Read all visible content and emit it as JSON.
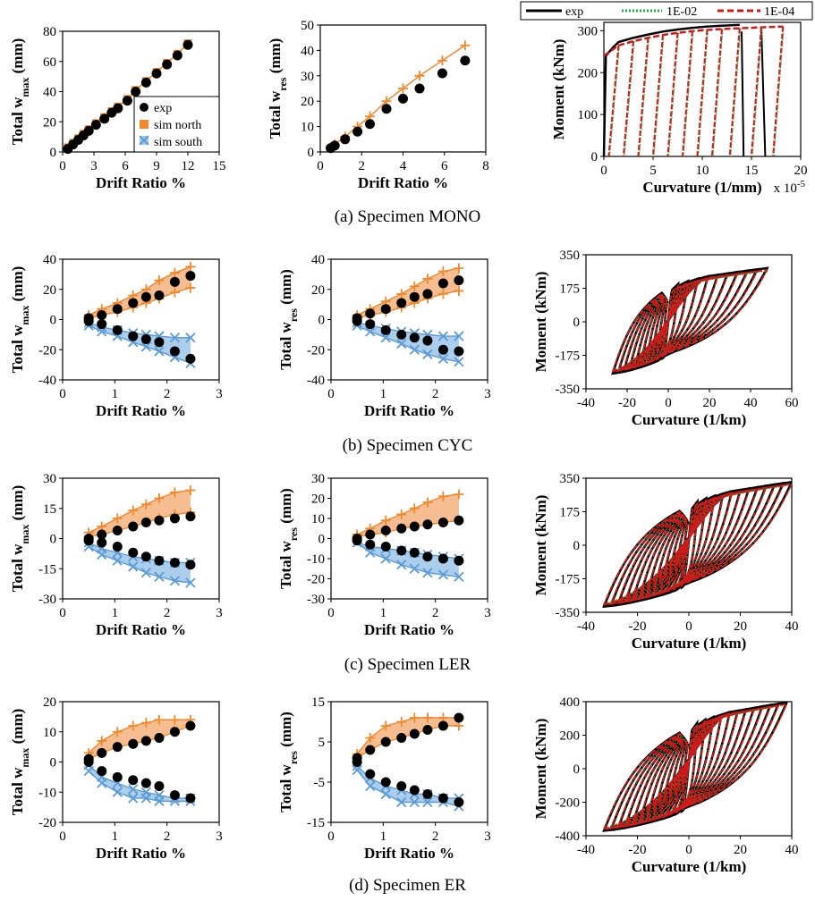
{
  "captions": {
    "a": "(a) Specimen MONO",
    "b": "(b) Specimen CYC",
    "c": "(c) Specimen LER",
    "d": "(d) Specimen ER"
  },
  "colors": {
    "exp": "#000000",
    "north": "#f0882e",
    "north_fill": "#f5b37c",
    "south": "#5b9bd5",
    "south_fill": "#9ec5ea",
    "sim_e2": "#22b14c",
    "sim_e4": "#d01a1a"
  },
  "top_legend": {
    "exp": "exp",
    "s1": "1E-02",
    "s2": "1E-04"
  },
  "chart_data": [
    {
      "id": "a1",
      "type": "scatter",
      "xlabel": "Drift Ratio %",
      "ylabel": "Total w",
      "ylabel_sub": "max",
      "ylabel_unit": " (mm)",
      "xlim": [
        0,
        15
      ],
      "ylim": [
        0,
        80
      ],
      "xticks": [
        "0",
        "3",
        "6",
        "9",
        "12",
        "15"
      ],
      "yticks": [
        "0",
        "20",
        "40",
        "60",
        "80"
      ],
      "legend": {
        "exp": "exp",
        "north": "sim north",
        "south": "sim south"
      },
      "series": [
        {
          "name": "exp",
          "kind": "exp",
          "x": [
            0.5,
            1.0,
            1.5,
            2.0,
            2.5,
            3.2,
            4.0,
            4.7,
            5.3,
            6.2,
            7.0,
            8.0,
            9.0,
            10.0,
            11.0,
            12.0
          ],
          "y": [
            2,
            5,
            8,
            11,
            14,
            18,
            22,
            26,
            29,
            34,
            40,
            46,
            52,
            58,
            64,
            71
          ]
        },
        {
          "name": "sim north",
          "kind": "north",
          "x": [
            0.5,
            1.0,
            1.5,
            2.0,
            2.5,
            3.2,
            4.0,
            4.7,
            5.3,
            6.2,
            7.0,
            8.0,
            9.0,
            10.0,
            11.0,
            12.0
          ],
          "y": [
            3,
            6,
            9,
            12,
            15,
            19,
            23,
            27,
            30,
            35,
            41,
            47,
            53,
            59,
            65,
            72
          ]
        }
      ]
    },
    {
      "id": "a2",
      "type": "scatter",
      "xlabel": "Drift Ratio %",
      "ylabel": "Total w",
      "ylabel_sub": "res",
      "ylabel_unit": " (mm)",
      "xlim": [
        0,
        8
      ],
      "ylim": [
        0,
        50
      ],
      "xticks": [
        "0",
        "2",
        "4",
        "6",
        "8"
      ],
      "yticks": [
        "0",
        "10",
        "20",
        "30",
        "40",
        "50"
      ],
      "series": [
        {
          "name": "exp",
          "kind": "exp",
          "x": [
            0.5,
            0.7,
            1.2,
            1.8,
            2.4,
            3.2,
            4.0,
            4.8,
            5.9,
            7.0
          ],
          "y": [
            1.5,
            2.5,
            5,
            8,
            11,
            17,
            21,
            25,
            31,
            36
          ]
        },
        {
          "name": "sim north",
          "kind": "north",
          "x": [
            0.5,
            0.7,
            1.2,
            1.8,
            2.4,
            3.2,
            4.0,
            4.8,
            5.9,
            7.0
          ],
          "y": [
            2,
            3,
            6,
            10,
            14,
            20,
            25,
            30,
            36,
            42
          ]
        }
      ]
    },
    {
      "id": "a3",
      "type": "line",
      "hyst": "mono",
      "xlabel": "Curvature (1/mm)",
      "ylabel": "Moment (kNm)",
      "xnote": "x 10",
      "xnote_sup": "-5",
      "xlim": [
        0,
        20
      ],
      "ylim": [
        0,
        320
      ],
      "xticks": [
        "0",
        "5",
        "10",
        "15",
        "20"
      ],
      "yticks": [
        "0",
        "100",
        "200",
        "300"
      ],
      "peaks": [
        1.5,
        3,
        4.5,
        6,
        7.5,
        9,
        10.5,
        12,
        13.8,
        16,
        18.2
      ],
      "envelope_y": [
        265,
        275,
        283,
        290,
        295,
        299,
        302,
        304,
        306,
        308,
        310
      ]
    },
    {
      "id": "b1",
      "type": "scatter",
      "xlabel": "Drift Ratio %",
      "ylabel": "Total w",
      "ylabel_sub": "max",
      "ylabel_unit": " (mm)",
      "xlim": [
        0,
        3
      ],
      "ylim": [
        -40,
        40
      ],
      "xticks": [
        "0",
        "1",
        "2",
        "3"
      ],
      "yticks": [
        "-40",
        "-20",
        "0",
        "20",
        "40"
      ],
      "x": [
        0.5,
        0.75,
        1.05,
        1.35,
        1.6,
        1.85,
        2.15,
        2.45
      ],
      "exp_pos": [
        1,
        3,
        7,
        11,
        15,
        16,
        25,
        29
      ],
      "exp_neg": [
        -1,
        -3,
        -7,
        -11,
        -13,
        -15,
        -21,
        -26
      ],
      "north_hi": [
        3,
        7,
        11,
        16,
        20,
        26,
        31,
        35
      ],
      "north_lo": [
        1,
        3,
        5,
        8,
        11,
        14,
        18,
        21
      ],
      "south_hi": [
        -2,
        -5,
        -7,
        -9,
        -10,
        -11,
        -12,
        -12
      ],
      "south_lo": [
        -4,
        -8,
        -11,
        -15,
        -18,
        -21,
        -25,
        -29
      ]
    },
    {
      "id": "b2",
      "type": "scatter",
      "xlabel": "Drift Ratio %",
      "ylabel": "Total w",
      "ylabel_sub": "res",
      "ylabel_unit": " (mm)",
      "xlim": [
        0,
        3
      ],
      "ylim": [
        -40,
        40
      ],
      "xticks": [
        "0",
        "1",
        "2",
        "3"
      ],
      "yticks": [
        "-40",
        "-20",
        "0",
        "20",
        "40"
      ],
      "x": [
        0.5,
        0.75,
        1.05,
        1.35,
        1.6,
        1.85,
        2.15,
        2.45
      ],
      "exp_pos": [
        1,
        4,
        7,
        11,
        15,
        17,
        24,
        26
      ],
      "exp_neg": [
        -1,
        -3,
        -7,
        -10,
        -12,
        -14,
        -20,
        -21
      ],
      "north_hi": [
        3,
        7,
        12,
        17,
        22,
        27,
        32,
        34
      ],
      "north_lo": [
        1,
        3,
        5,
        8,
        11,
        14,
        17,
        19
      ],
      "south_hi": [
        -2,
        -4,
        -6,
        -8,
        -9,
        -10,
        -11,
        -11
      ],
      "south_lo": [
        -4,
        -8,
        -12,
        -16,
        -20,
        -23,
        -26,
        -28
      ]
    },
    {
      "id": "b3",
      "type": "line",
      "hyst": "cyclic",
      "xlabel": "Curvature (1/km)",
      "ylabel": "Moment (kNm)",
      "xlim": [
        -40,
        60
      ],
      "ylim": [
        -350,
        350
      ],
      "xticks": [
        "-40",
        "-20",
        "0",
        "20",
        "40",
        "60"
      ],
      "yticks": [
        "-350",
        "-175",
        "0",
        "175",
        "350"
      ],
      "xmin_peak": -27,
      "xmax_peak": 48,
      "mpos": 270,
      "mneg": -260,
      "loops": 10
    },
    {
      "id": "c1",
      "type": "scatter",
      "xlabel": "Drift Ratio %",
      "ylabel": "Total w",
      "ylabel_sub": "max",
      "ylabel_unit": " (mm)",
      "xlim": [
        0,
        3
      ],
      "ylim": [
        -30,
        30
      ],
      "xticks": [
        "0",
        "1",
        "2",
        "3"
      ],
      "yticks": [
        "-30",
        "-15",
        "0",
        "15",
        "30"
      ],
      "x": [
        0.5,
        0.75,
        1.05,
        1.35,
        1.6,
        1.85,
        2.15,
        2.45
      ],
      "exp_pos": [
        0,
        2,
        4,
        6,
        8,
        9,
        10,
        11
      ],
      "exp_neg": [
        -1,
        -2,
        -4,
        -7,
        -9,
        -11,
        -12,
        -13
      ],
      "north_hi": [
        3,
        6,
        10,
        14,
        17,
        20,
        23,
        24
      ],
      "north_lo": [
        1,
        2,
        4,
        6,
        8,
        10,
        12,
        13
      ],
      "south_hi": [
        -2,
        -5,
        -7,
        -9,
        -10,
        -11,
        -12,
        -12
      ],
      "south_lo": [
        -4,
        -8,
        -11,
        -14,
        -17,
        -19,
        -21,
        -22
      ]
    },
    {
      "id": "c2",
      "type": "scatter",
      "xlabel": "Drift Ratio %",
      "ylabel": "Total w",
      "ylabel_sub": "res",
      "ylabel_unit": " (mm)",
      "xlim": [
        0,
        3
      ],
      "ylim": [
        -30,
        30
      ],
      "xticks": [
        "0",
        "1",
        "2",
        "3"
      ],
      "yticks": [
        "-30",
        "-20",
        "-10",
        "0",
        "10",
        "20",
        "30"
      ],
      "x": [
        0.5,
        0.75,
        1.05,
        1.35,
        1.6,
        1.85,
        2.15,
        2.45
      ],
      "exp_pos": [
        0,
        2,
        4,
        5,
        6,
        7,
        8,
        9
      ],
      "exp_neg": [
        -1,
        -3,
        -4,
        -6,
        -7,
        -9,
        -10,
        -11
      ],
      "north_hi": [
        2,
        5,
        9,
        12,
        15,
        18,
        21,
        22
      ],
      "north_lo": [
        1,
        2,
        3,
        5,
        6,
        7,
        8,
        9
      ],
      "south_hi": [
        -2,
        -4,
        -5,
        -6,
        -7,
        -8,
        -9,
        -10
      ],
      "south_lo": [
        -2,
        -7,
        -10,
        -13,
        -15,
        -17,
        -18,
        -19
      ]
    },
    {
      "id": "c3",
      "type": "line",
      "hyst": "cyclic",
      "xlabel": "Curvature (1/km)",
      "ylabel": "Moment (kNm)",
      "xlim": [
        -40,
        40
      ],
      "ylim": [
        -350,
        350
      ],
      "xticks": [
        "-40",
        "-20",
        "0",
        "20",
        "40"
      ],
      "yticks": [
        "-350",
        "-175",
        "0",
        "175",
        "350"
      ],
      "xmin_peak": -33,
      "xmax_peak": 40,
      "mpos": 320,
      "mneg": -310,
      "loops": 12
    },
    {
      "id": "d1",
      "type": "scatter",
      "xlabel": "Drift Ratio %",
      "ylabel": "Total w",
      "ylabel_sub": "max",
      "ylabel_unit": " (mm)",
      "xlim": [
        0,
        3
      ],
      "ylim": [
        -20,
        20
      ],
      "xticks": [
        "0",
        "1",
        "2",
        "3"
      ],
      "yticks": [
        "-20",
        "-10",
        "0",
        "10",
        "20"
      ],
      "x": [
        0.5,
        0.75,
        1.05,
        1.35,
        1.6,
        1.85,
        2.15,
        2.45
      ],
      "exp_pos": [
        1,
        3,
        5,
        6,
        7,
        8,
        10,
        12
      ],
      "exp_neg": [
        0,
        -3,
        -5,
        -6,
        -7,
        -8,
        -11,
        -12
      ],
      "north_hi": [
        3,
        7,
        10,
        12,
        13,
        14,
        14,
        14
      ],
      "north_lo": [
        1,
        3,
        5,
        6,
        7,
        8,
        10,
        12
      ],
      "south_hi": [
        -1,
        -5,
        -7,
        -9,
        -10,
        -11,
        -12,
        -12
      ],
      "south_lo": [
        -3,
        -7,
        -10,
        -12,
        -12,
        -13,
        -13,
        -13
      ]
    },
    {
      "id": "d2",
      "type": "scatter",
      "xlabel": "Drift Ratio %",
      "ylabel": "Total w",
      "ylabel_sub": "res",
      "ylabel_unit": " (mm)",
      "xlim": [
        0,
        3
      ],
      "ylim": [
        -15,
        15
      ],
      "xticks": [
        "0",
        "1",
        "2",
        "3"
      ],
      "yticks": [
        "-15",
        "-5",
        "5",
        "15"
      ],
      "x": [
        0.5,
        0.75,
        1.05,
        1.35,
        1.6,
        1.85,
        2.15,
        2.45
      ],
      "exp_pos": [
        1,
        3,
        5,
        6,
        7,
        8,
        9,
        11
      ],
      "exp_neg": [
        0,
        -3,
        -5,
        -6,
        -7,
        -8,
        -9,
        -10
      ],
      "north_hi": [
        2,
        6,
        9,
        10,
        11,
        11,
        11,
        11
      ],
      "north_lo": [
        1,
        3,
        5,
        6,
        7,
        8,
        9,
        9
      ],
      "south_hi": [
        -1,
        -4,
        -6,
        -7,
        -8,
        -8,
        -9,
        -9
      ],
      "south_lo": [
        -2,
        -6,
        -8,
        -10,
        -10,
        -10,
        -10,
        -11
      ]
    },
    {
      "id": "d3",
      "type": "line",
      "hyst": "cyclic",
      "xlabel": "Curvature (1/km)",
      "ylabel": "Moment (kNm)",
      "xlim": [
        -40,
        40
      ],
      "ylim": [
        -400,
        400
      ],
      "xticks": [
        "-40",
        "-20",
        "0",
        "20",
        "40"
      ],
      "yticks": [
        "-400",
        "-200",
        "0",
        "200",
        "400"
      ],
      "xmin_peak": -33,
      "xmax_peak": 38,
      "mpos": 385,
      "mneg": -360,
      "loops": 12
    }
  ]
}
